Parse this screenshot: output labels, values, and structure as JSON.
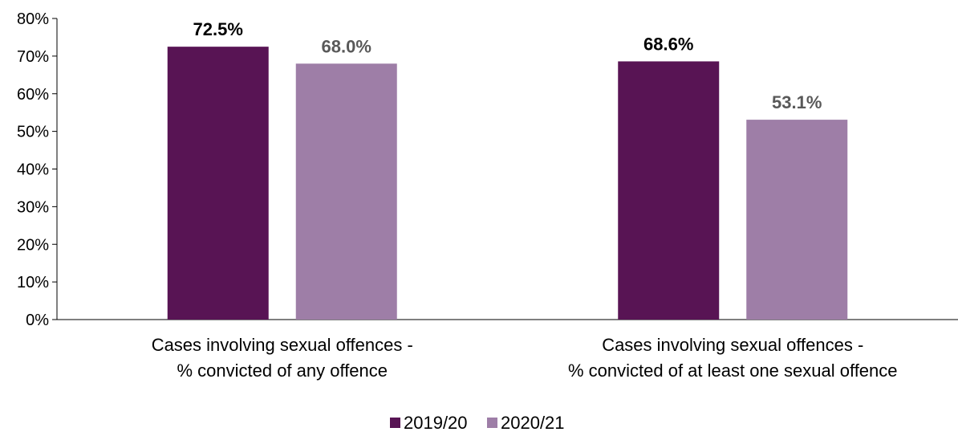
{
  "chart_data": {
    "type": "bar",
    "categories": [
      [
        "Cases involving sexual offences -",
        "% convicted of any offence"
      ],
      [
        "Cases involving sexual offences -",
        "% convicted of at least one sexual offence"
      ]
    ],
    "series": [
      {
        "name": "2019/20",
        "values": [
          72.5,
          68.6
        ],
        "labels": [
          "72.5%",
          "68.6%"
        ],
        "color": "#581454",
        "label_color": "#000000"
      },
      {
        "name": "2020/21",
        "values": [
          68.0,
          53.1
        ],
        "labels": [
          "68.0%",
          "53.1%"
        ],
        "color": "#9e7ea7",
        "label_color": "#595959"
      }
    ],
    "ylim": [
      0,
      80
    ],
    "yticks": [
      "0%",
      "10%",
      "20%",
      "30%",
      "40%",
      "50%",
      "60%",
      "70%",
      "80%"
    ],
    "grid": false,
    "legend_position": "bottom"
  }
}
